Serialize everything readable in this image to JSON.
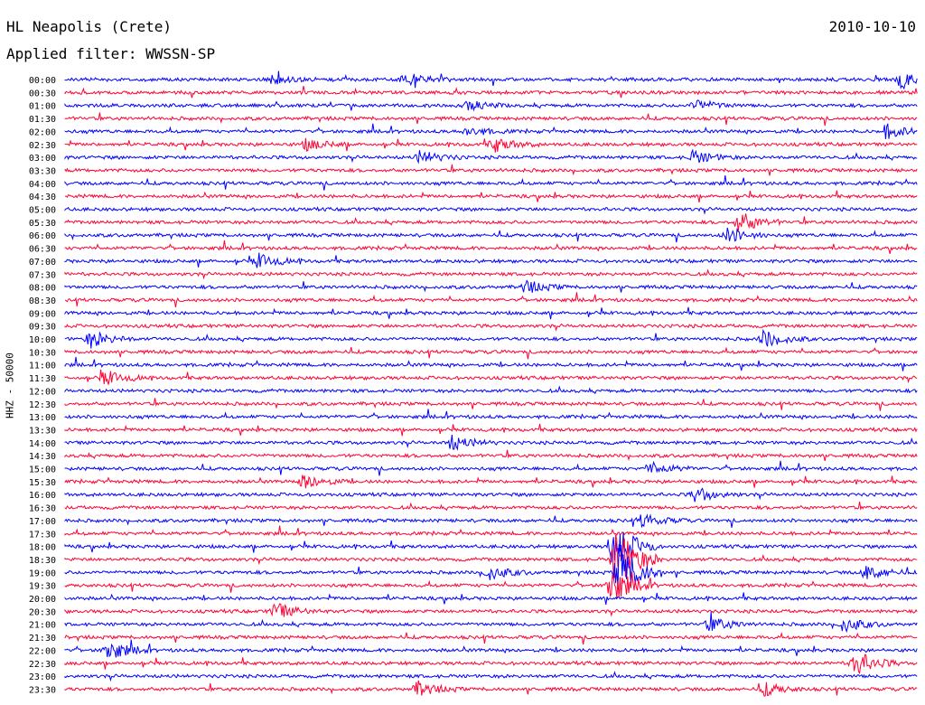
{
  "header": {
    "station": "HL Neapolis (Crete)",
    "date": "2010-10-10",
    "filter": "Applied filter: WWSSN-SP"
  },
  "chart_data": {
    "type": "line",
    "title": "HL Neapolis (Crete)",
    "subtitle": "Applied filter: WWSSN-SP",
    "date": "2010-10-10",
    "ylabel": "HHZ - 50000",
    "xlabel": "",
    "row_labels": [
      "00:00",
      "00:30",
      "01:00",
      "01:30",
      "02:00",
      "02:30",
      "03:00",
      "03:30",
      "04:00",
      "04:30",
      "05:00",
      "05:30",
      "06:00",
      "06:30",
      "07:00",
      "07:30",
      "08:00",
      "08:30",
      "09:00",
      "09:30",
      "10:00",
      "10:30",
      "11:00",
      "11:30",
      "12:00",
      "12:30",
      "13:00",
      "13:30",
      "14:00",
      "14:30",
      "15:00",
      "15:30",
      "16:00",
      "16:30",
      "17:00",
      "17:30",
      "18:00",
      "18:30",
      "19:00",
      "19:30",
      "20:00",
      "20:30",
      "21:00",
      "21:30",
      "22:00",
      "22:30",
      "23:00",
      "23:30"
    ],
    "trace_colors": [
      "#0000ff",
      "#ff0033"
    ],
    "grid": false,
    "legend": "none",
    "events": [
      {
        "row": "00:00",
        "minute": 7.3,
        "amplitude": 5
      },
      {
        "row": "00:00",
        "minute": 12.0,
        "amplitude": 7
      },
      {
        "row": "00:00",
        "minute": 29.4,
        "amplitude": 8
      },
      {
        "row": "01:00",
        "minute": 14.1,
        "amplitude": 6
      },
      {
        "row": "01:00",
        "minute": 22.2,
        "amplitude": 6
      },
      {
        "row": "02:00",
        "minute": 14.2,
        "amplitude": 5
      },
      {
        "row": "02:00",
        "minute": 28.9,
        "amplitude": 8
      },
      {
        "row": "02:30",
        "minute": 8.5,
        "amplitude": 6
      },
      {
        "row": "02:30",
        "minute": 15.1,
        "amplitude": 8
      },
      {
        "row": "03:00",
        "minute": 12.5,
        "amplitude": 7
      },
      {
        "row": "03:00",
        "minute": 22.1,
        "amplitude": 7
      },
      {
        "row": "05:30",
        "minute": 23.7,
        "amplitude": 12
      },
      {
        "row": "06:00",
        "minute": 23.3,
        "amplitude": 8
      },
      {
        "row": "07:00",
        "minute": 6.8,
        "amplitude": 8
      },
      {
        "row": "08:00",
        "minute": 16.2,
        "amplitude": 7
      },
      {
        "row": "10:00",
        "minute": 0.9,
        "amplitude": 9
      },
      {
        "row": "10:00",
        "minute": 24.6,
        "amplitude": 10
      },
      {
        "row": "11:30",
        "minute": 1.4,
        "amplitude": 8
      },
      {
        "row": "14:00",
        "minute": 13.6,
        "amplitude": 8
      },
      {
        "row": "15:00",
        "minute": 20.6,
        "amplitude": 7
      },
      {
        "row": "15:30",
        "minute": 8.4,
        "amplitude": 8
      },
      {
        "row": "16:00",
        "minute": 22.2,
        "amplitude": 8
      },
      {
        "row": "17:00",
        "minute": 20.3,
        "amplitude": 7
      },
      {
        "row": "18:00",
        "minute": 19.3,
        "amplitude": 30
      },
      {
        "row": "18:30",
        "minute": 19.4,
        "amplitude": 36
      },
      {
        "row": "19:00",
        "minute": 19.5,
        "amplitude": 34
      },
      {
        "row": "19:30",
        "minute": 19.2,
        "amplitude": 22
      },
      {
        "row": "19:00",
        "minute": 14.9,
        "amplitude": 8
      },
      {
        "row": "19:00",
        "minute": 28.2,
        "amplitude": 8
      },
      {
        "row": "20:30",
        "minute": 7.4,
        "amplitude": 9
      },
      {
        "row": "21:00",
        "minute": 22.7,
        "amplitude": 8
      },
      {
        "row": "21:00",
        "minute": 27.4,
        "amplitude": 8
      },
      {
        "row": "22:00",
        "minute": 1.5,
        "amplitude": 12
      },
      {
        "row": "22:30",
        "minute": 27.8,
        "amplitude": 14
      },
      {
        "row": "23:30",
        "minute": 12.4,
        "amplitude": 8
      },
      {
        "row": "23:30",
        "minute": 24.6,
        "amplitude": 7
      }
    ]
  }
}
